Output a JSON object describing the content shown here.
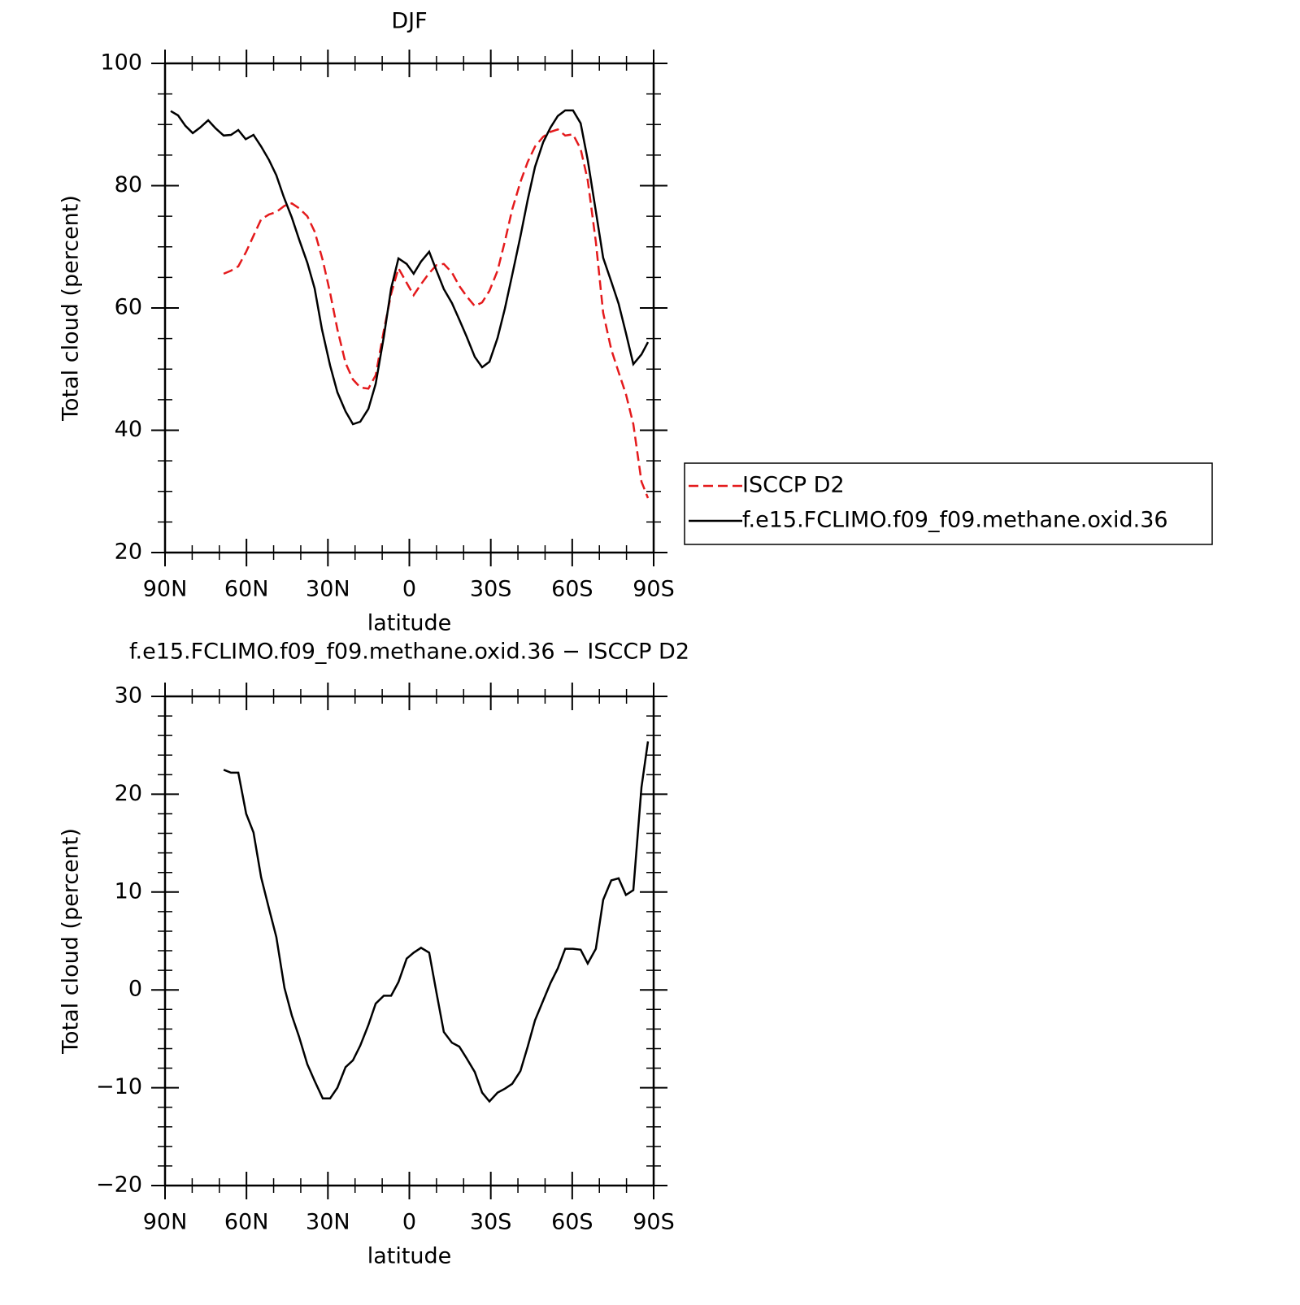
{
  "chart_data": [
    {
      "type": "line",
      "title": "DJF",
      "x_label": "latitude",
      "y_label": "Total cloud (percent)",
      "xlim": [
        90,
        -90
      ],
      "xticks": [
        {
          "value": 90,
          "label": "90N"
        },
        {
          "value": 60,
          "label": "60N"
        },
        {
          "value": 30,
          "label": "30N"
        },
        0,
        {
          "value": -30,
          "label": "30S"
        },
        {
          "value": -60,
          "label": "60S"
        },
        {
          "value": -90,
          "label": "90S"
        }
      ],
      "xminor_ticks": [
        80,
        70,
        50,
        40,
        20,
        10,
        -10,
        -20,
        -40,
        -50,
        -70,
        -80
      ],
      "ylim": [
        20,
        100
      ],
      "yticks": [
        20,
        40,
        60,
        80,
        100
      ],
      "yminor_ticks": [
        25,
        30,
        35,
        45,
        50,
        55,
        65,
        70,
        75,
        85,
        90,
        95
      ],
      "legend": "right",
      "series": [
        {
          "name": "ISCCP D2",
          "color": "#e41a1c",
          "dashed": true,
          "x": [
            68.4,
            65.7,
            63.0,
            60.1,
            57.4,
            54.6,
            51.7,
            49.0,
            46.0,
            43.3,
            40.6,
            37.6,
            34.9,
            31.9,
            29.2,
            26.5,
            23.5,
            20.8,
            18.1,
            15.1,
            12.4,
            9.4,
            6.7,
            4.0,
            1.0,
            -1.6,
            -4.3,
            -7.3,
            -10.0,
            -12.7,
            -15.7,
            -18.4,
            -21.1,
            -24.1,
            -26.8,
            -29.5,
            -32.5,
            -35.2,
            -37.9,
            -40.9,
            -43.6,
            -46.3,
            -49.3,
            -52.0,
            -54.7,
            -57.4,
            -60.3,
            -63.1,
            -65.7,
            -68.7,
            -71.4,
            -74.4,
            -77.1,
            -79.8,
            -82.5,
            -85.5,
            -87.9
          ],
          "values": [
            65.6,
            66.1,
            66.8,
            69.2,
            71.8,
            74.5,
            75.3,
            75.7,
            76.7,
            77.1,
            76.3,
            75.0,
            72.5,
            67.8,
            62.5,
            56.5,
            51.0,
            48.3,
            47.0,
            46.8,
            49.0,
            56.3,
            62.3,
            66.5,
            64.1,
            62.1,
            63.9,
            65.7,
            67.0,
            67.2,
            65.8,
            63.6,
            61.9,
            60.3,
            60.9,
            62.8,
            66.1,
            70.9,
            76.1,
            80.6,
            83.9,
            86.4,
            88.0,
            88.8,
            89.2,
            88.2,
            88.4,
            86.0,
            80.9,
            70.8,
            59.2,
            53.2,
            49.5,
            45.9,
            41.0,
            31.6,
            28.9
          ]
        },
        {
          "name": "f.e15.FCLIMO.f09_f09.methane.oxid.36",
          "color": "#000000",
          "dashed": false,
          "x": [
            87.9,
            85.2,
            82.5,
            79.8,
            77.1,
            74.1,
            71.4,
            68.4,
            65.7,
            63.0,
            60.3,
            57.4,
            54.6,
            51.7,
            49.0,
            46.3,
            43.3,
            40.6,
            37.6,
            34.9,
            32.2,
            29.2,
            26.5,
            23.5,
            20.8,
            18.1,
            15.1,
            12.4,
            9.4,
            6.7,
            4.0,
            1.0,
            -1.6,
            -4.3,
            -7.3,
            -10.0,
            -12.7,
            -15.7,
            -18.4,
            -21.1,
            -24.1,
            -26.8,
            -29.5,
            -32.5,
            -35.2,
            -37.9,
            -40.9,
            -43.6,
            -46.3,
            -49.3,
            -52.0,
            -54.7,
            -57.4,
            -60.3,
            -63.1,
            -65.7,
            -68.7,
            -71.4,
            -74.4,
            -77.1,
            -79.8,
            -82.5,
            -85.5,
            -87.9
          ],
          "values": [
            92.2,
            91.5,
            89.8,
            88.6,
            89.5,
            90.7,
            89.4,
            88.2,
            88.3,
            89.1,
            87.6,
            88.3,
            86.4,
            84.2,
            81.7,
            78.2,
            74.8,
            71.2,
            67.4,
            63.2,
            56.5,
            50.6,
            46.2,
            43.1,
            41.0,
            41.4,
            43.5,
            47.6,
            55.3,
            63.2,
            68.1,
            67.2,
            65.6,
            67.6,
            69.2,
            66.1,
            63.1,
            60.8,
            58.1,
            55.3,
            52.0,
            50.3,
            51.2,
            55.1,
            59.9,
            65.4,
            71.7,
            77.7,
            83.1,
            87.1,
            89.5,
            91.4,
            92.3,
            92.3,
            90.2,
            84.2,
            75.8,
            68.2,
            64.3,
            60.7,
            55.9,
            50.8,
            52.4,
            54.4
          ]
        }
      ]
    },
    {
      "type": "line",
      "title": "f.e15.FCLIMO.f09_f09.methane.oxid.36 − ISCCP D2",
      "x_label": "latitude",
      "y_label": "Total cloud (percent)",
      "xlim": [
        90,
        -90
      ],
      "xticks": [
        {
          "value": 90,
          "label": "90N"
        },
        {
          "value": 60,
          "label": "60N"
        },
        {
          "value": 30,
          "label": "30N"
        },
        0,
        {
          "value": -30,
          "label": "30S"
        },
        {
          "value": -60,
          "label": "60S"
        },
        {
          "value": -90,
          "label": "90S"
        }
      ],
      "xminor_ticks": [
        80,
        70,
        50,
        40,
        20,
        10,
        -10,
        -20,
        -40,
        -50,
        -70,
        -80
      ],
      "ylim": [
        -20,
        30
      ],
      "yticks": [
        {
          "value": -20,
          "label": "−20"
        },
        {
          "value": -10,
          "label": "−10"
        },
        0,
        10,
        20,
        30
      ],
      "yminor_ticks": [
        -18,
        -16,
        -14,
        -12,
        -8,
        -6,
        -4,
        -2,
        2,
        4,
        6,
        8,
        12,
        14,
        16,
        18,
        22,
        24,
        26,
        28
      ],
      "series": [
        {
          "color": "#000000",
          "dashed": false,
          "x": [
            68.4,
            65.7,
            63.0,
            60.1,
            57.4,
            54.6,
            51.7,
            49.0,
            46.0,
            43.3,
            40.6,
            37.6,
            34.9,
            31.9,
            29.2,
            26.5,
            23.5,
            20.8,
            18.1,
            15.1,
            12.4,
            9.4,
            6.7,
            4.0,
            1.0,
            -1.6,
            -4.3,
            -7.3,
            -10.0,
            -12.7,
            -15.7,
            -18.4,
            -21.1,
            -24.1,
            -26.8,
            -29.5,
            -32.5,
            -35.2,
            -37.9,
            -40.9,
            -43.6,
            -46.3,
            -49.3,
            -52.0,
            -54.7,
            -57.4,
            -60.3,
            -63.1,
            -65.7,
            -68.7,
            -71.4,
            -74.4,
            -77.1,
            -79.8,
            -82.5,
            -85.5,
            -87.9
          ],
          "values": [
            22.5,
            22.2,
            22.2,
            18.0,
            16.1,
            11.5,
            8.3,
            5.4,
            0.2,
            -2.6,
            -4.8,
            -7.6,
            -9.3,
            -11.1,
            -11.1,
            -10.0,
            -7.9,
            -7.2,
            -5.7,
            -3.6,
            -1.4,
            -0.6,
            -0.6,
            0.8,
            3.2,
            3.8,
            4.3,
            3.8,
            -0.3,
            -4.3,
            -5.4,
            -5.8,
            -7.0,
            -8.4,
            -10.5,
            -11.4,
            -10.5,
            -10.1,
            -9.6,
            -8.3,
            -5.8,
            -3.1,
            -1.1,
            0.7,
            2.2,
            4.2,
            4.2,
            4.1,
            2.7,
            4.2,
            9.2,
            11.2,
            11.4,
            9.7,
            10.2,
            20.7,
            25.4
          ]
        }
      ]
    }
  ]
}
